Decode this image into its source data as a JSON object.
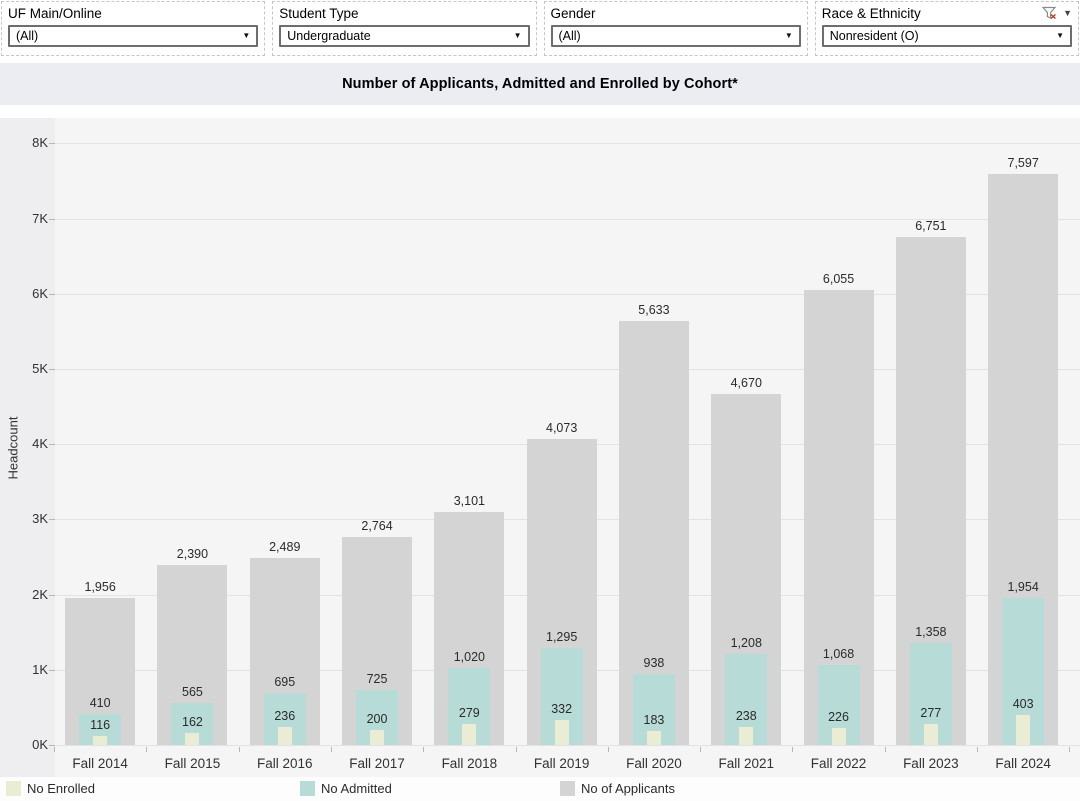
{
  "filters": [
    {
      "label": "UF Main/Online",
      "value": "(All)"
    },
    {
      "label": "Student Type",
      "value": "Undergraduate"
    },
    {
      "label": "Gender",
      "value": "(All)"
    },
    {
      "label": "Race & Ethnicity",
      "value": "Nonresident (O)",
      "has_clear_filter_icon": true
    }
  ],
  "title": "Number of Applicants, Admitted and Enrolled by Cohort*",
  "chart_data": {
    "type": "bar",
    "subtype": "overlapped-bars",
    "title": "Number of Applicants, Admitted and Enrolled by Cohort*",
    "categories": [
      "Fall 2014",
      "Fall 2015",
      "Fall 2016",
      "Fall 2017",
      "Fall 2018",
      "Fall 2019",
      "Fall 2020",
      "Fall 2021",
      "Fall 2022",
      "Fall 2023",
      "Fall 2024"
    ],
    "series": [
      {
        "name": "No of Applicants",
        "color": "#d4d4d5",
        "values": [
          1956,
          2390,
          2489,
          2764,
          3101,
          4073,
          5633,
          4670,
          6055,
          6751,
          7597
        ]
      },
      {
        "name": "No Admitted",
        "color": "#b7dbd6",
        "values": [
          410,
          565,
          695,
          725,
          1020,
          1295,
          938,
          1208,
          1068,
          1358,
          1954
        ]
      },
      {
        "name": "No Enrolled",
        "color": "#eaecd3",
        "values": [
          116,
          162,
          236,
          200,
          279,
          332,
          183,
          238,
          226,
          277,
          403
        ]
      }
    ],
    "xlabel": "",
    "ylabel": "Headcount",
    "ylim": [
      0,
      8000
    ],
    "y_ticks": [
      "0K",
      "1K",
      "2K",
      "3K",
      "4K",
      "5K",
      "6K",
      "7K",
      "8K"
    ],
    "grid": true,
    "data_labels": true,
    "legend_position": "bottom",
    "legend_items": [
      {
        "label": "No Enrolled",
        "color": "#eaecd3"
      },
      {
        "label": "No Admitted",
        "color": "#b7dbd6"
      },
      {
        "label": "No of Applicants",
        "color": "#d4d4d5"
      }
    ]
  }
}
